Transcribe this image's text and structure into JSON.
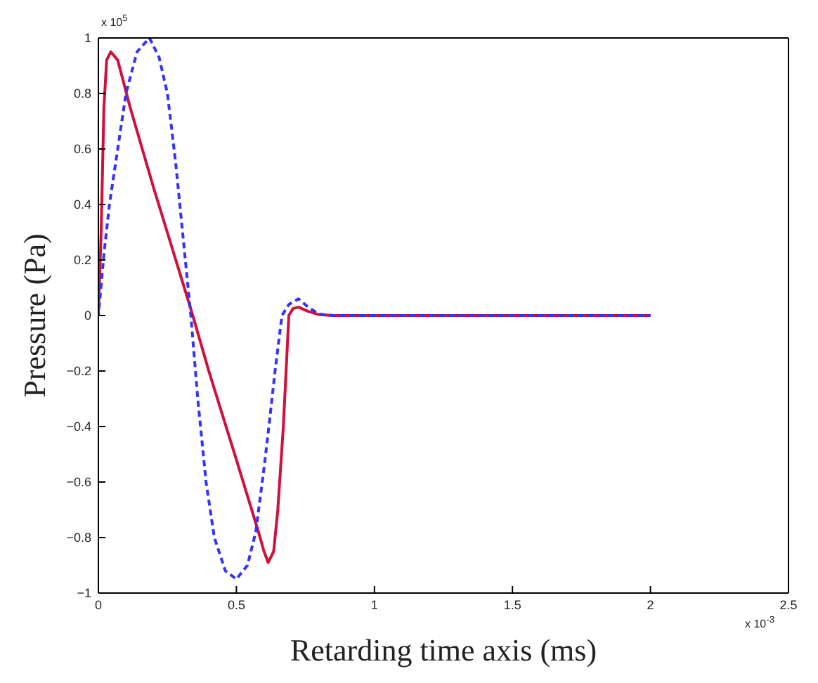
{
  "chart_data": {
    "type": "line",
    "xlabel": "Retarding time axis (ms)",
    "ylabel": "Pressure (Pa)",
    "xlim": [
      0,
      2.5
    ],
    "xticks": [
      0,
      0.5,
      1,
      1.5,
      2,
      2.5
    ],
    "ylim": [
      -1,
      1
    ],
    "yticks": [
      -1,
      -0.8,
      -0.6,
      -0.4,
      -0.2,
      0,
      0.2,
      0.4,
      0.6,
      0.8,
      1
    ],
    "marker": "none",
    "annotations": [
      "x 10$^{5}$",
      "x 10$^{-3}$"
    ],
    "series": [
      {
        "color": "#d0103a",
        "line_style": "solid",
        "x": [
          0,
          0.01,
          0.02,
          0.03,
          0.045,
          0.07,
          0.115,
          0.2,
          0.265,
          0.342,
          0.4,
          0.5,
          0.58,
          0.6,
          0.615,
          0.635,
          0.65,
          0.66,
          0.67,
          0.69,
          0.705,
          0.725,
          0.76,
          0.8,
          0.85,
          2
        ],
        "values": [
          0,
          0.3,
          0.75,
          0.92,
          0.95,
          0.92,
          0.75,
          0.46,
          0.25,
          0,
          -0.2,
          -0.52,
          -0.78,
          -0.85,
          -0.89,
          -0.85,
          -0.7,
          -0.55,
          -0.4,
          0,
          0.025,
          0.03,
          0.015,
          0.003,
          0,
          0
        ]
      },
      {
        "color": "#3333ff",
        "line_style": "dashed",
        "x": [
          0,
          0.02,
          0.04,
          0.07,
          0.1,
          0.14,
          0.185,
          0.22,
          0.25,
          0.28,
          0.3,
          0.335,
          0.36,
          0.39,
          0.42,
          0.46,
          0.5,
          0.54,
          0.57,
          0.6,
          0.62,
          0.64,
          0.665,
          0.69,
          0.725,
          0.76,
          0.8,
          0.85,
          2
        ],
        "values": [
          0,
          0.22,
          0.4,
          0.6,
          0.8,
          0.95,
          1.0,
          0.93,
          0.8,
          0.55,
          0.35,
          0,
          -0.3,
          -0.6,
          -0.8,
          -0.92,
          -0.95,
          -0.9,
          -0.78,
          -0.55,
          -0.38,
          -0.2,
          0,
          0.04,
          0.06,
          0.03,
          0.005,
          0,
          0
        ]
      }
    ]
  }
}
